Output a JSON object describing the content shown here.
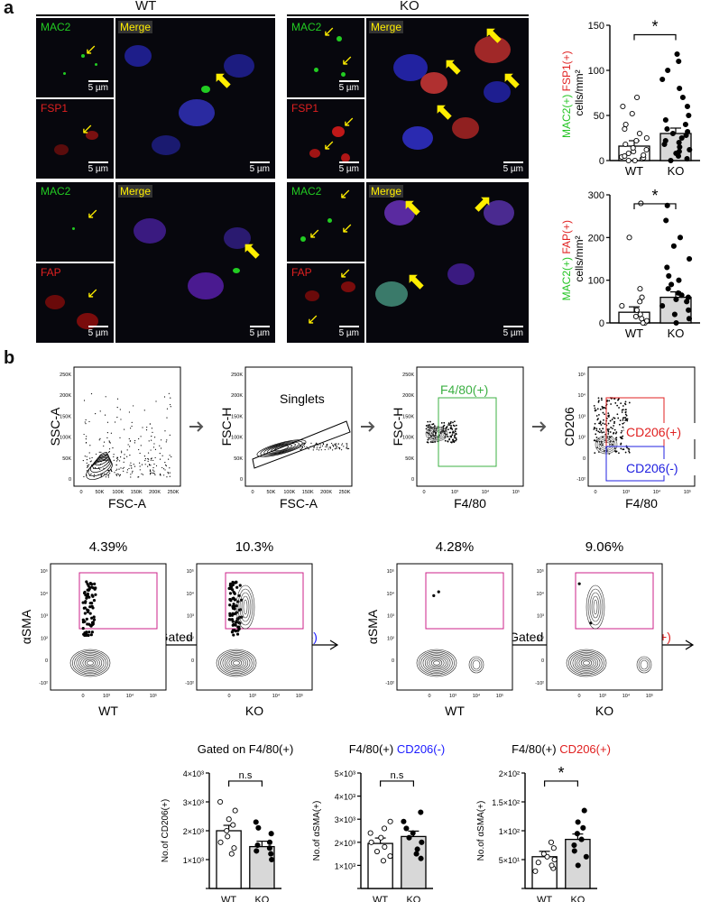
{
  "panel_a": {
    "letter": "a",
    "wt_title": "WT",
    "ko_title": "KO",
    "labels": {
      "mac2": "MAC2",
      "fsp1": "FSP1",
      "fap": "FAP",
      "merge": "Merge"
    },
    "scale_small": "5 µm",
    "scale_large": "5 µm",
    "colors": {
      "green": "#22c422",
      "red": "#e02020",
      "blue": "#1a1aff",
      "yellow": "#ffee00"
    },
    "chart_fsp1": {
      "ylabel_parts": [
        "MAC2(+)",
        "FSP1(+)",
        "cells/mm²"
      ],
      "yticks": [
        "0",
        "50",
        "100",
        "150"
      ],
      "categories": [
        "WT",
        "KO"
      ],
      "sig": "*"
    },
    "chart_fap": {
      "ylabel_parts": [
        "MAC2(+)",
        "FAP(+)",
        "cells/mm²"
      ],
      "yticks": [
        "0",
        "100",
        "200",
        "300"
      ],
      "categories": [
        "WT",
        "KO"
      ],
      "sig": "*"
    }
  },
  "panel_b": {
    "letter": "b",
    "gating": [
      {
        "ylabel": "SSC-A",
        "xlabel": "FSC-A",
        "yticks": [
          "0",
          "50K",
          "100K",
          "150K",
          "200K",
          "250K"
        ],
        "xticks": [
          "0",
          "50K",
          "100K",
          "150K",
          "200K",
          "250K"
        ]
      },
      {
        "ylabel": "FSC-H",
        "xlabel": "FSC-A",
        "gate": "Singlets",
        "yticks": [
          "0",
          "50K",
          "100K",
          "150K",
          "200K",
          "250K"
        ],
        "xticks": [
          "0",
          "50K",
          "100K",
          "150K",
          "200K",
          "250K"
        ]
      },
      {
        "ylabel": "FSC-H",
        "xlabel": "F4/80",
        "gate": "F4/80(+)",
        "yticks": [
          "0",
          "50K",
          "100K",
          "150K",
          "200K",
          "250K"
        ],
        "xticks": [
          "0",
          "10³",
          "10⁴",
          "10⁵"
        ]
      },
      {
        "ylabel": "CD206",
        "xlabel": "F4/80",
        "gate_pos": "CD206(+)",
        "gate_neg": "CD206(-)",
        "yticks": [
          "-10²",
          "0",
          "10²",
          "10³",
          "10⁴",
          "10⁵"
        ],
        "xticks": [
          "0",
          "10³",
          "10⁴",
          "10⁵"
        ]
      }
    ],
    "gated_left": {
      "prefix": "Gated on F4/80(+) ",
      "suffix": "CD206(-)",
      "axis": "F4/80"
    },
    "gated_right": {
      "prefix": "Gated on F4/80(+) ",
      "suffix": "CD206(+)",
      "axis": "F4/80"
    },
    "asma_label": "αSMA",
    "contour_yticks": [
      "-10²",
      "0",
      "10²",
      "10³",
      "10⁴",
      "10⁵"
    ],
    "contour_xticks": [
      "0",
      "10³",
      "10⁴",
      "10⁵"
    ],
    "contours": [
      {
        "pct": "4.39%",
        "name": "WT"
      },
      {
        "pct": "10.3%",
        "name": "KO"
      },
      {
        "pct": "4.28%",
        "name": "WT"
      },
      {
        "pct": "9.06%",
        "name": "KO"
      }
    ],
    "bars_titles": [
      {
        "prefix": "Gated on F4/80(+)",
        "suffix": ""
      },
      {
        "prefix": "F4/80(+) ",
        "suffix": "CD206(-)"
      },
      {
        "prefix": "F4/80(+) ",
        "suffix": "CD206(+)"
      }
    ]
  },
  "chart_data": [
    {
      "type": "bar",
      "title": "",
      "ylabel": "MAC2(+) FSP1(+) cells/mm²",
      "categories": [
        "WT",
        "KO"
      ],
      "values": [
        16,
        30
      ],
      "ylim": [
        0,
        150
      ],
      "significance": "*",
      "points": {
        "WT": [
          0,
          0,
          2,
          3,
          4,
          5,
          6,
          8,
          10,
          12,
          14,
          18,
          22,
          25,
          30,
          35,
          40,
          52,
          60,
          70
        ],
        "KO": [
          0,
          2,
          5,
          8,
          10,
          12,
          15,
          18,
          20,
          22,
          25,
          28,
          30,
          32,
          35,
          40,
          45,
          50,
          60,
          70,
          80,
          90,
          100,
          110,
          118
        ]
      }
    },
    {
      "type": "bar",
      "title": "",
      "ylabel": "MAC2(+) FAP(+) cells/mm²",
      "categories": [
        "WT",
        "KO"
      ],
      "values": [
        25,
        60
      ],
      "ylim": [
        0,
        300
      ],
      "significance": "*",
      "points": {
        "WT": [
          0,
          0,
          5,
          10,
          15,
          20,
          30,
          40,
          50,
          60,
          80,
          200,
          280
        ],
        "KO": [
          0,
          10,
          20,
          30,
          40,
          50,
          55,
          60,
          65,
          70,
          80,
          90,
          100,
          110,
          130,
          150,
          180,
          200,
          240,
          275
        ]
      }
    },
    {
      "type": "bar",
      "title": "Gated on F4/80(+)",
      "ylabel": "No.of CD206(+)",
      "categories": [
        "WT",
        "KO"
      ],
      "values": [
        2000,
        1450
      ],
      "ylim": [
        0,
        4000
      ],
      "significance": "n.s",
      "points": {
        "WT": [
          1200,
          1400,
          1600,
          1800,
          2000,
          2200,
          2400,
          2700,
          3000
        ],
        "KO": [
          1000,
          1200,
          1300,
          1400,
          1500,
          1600,
          1900,
          2100,
          2300
        ]
      }
    },
    {
      "type": "bar",
      "title": "F4/80(+) CD206(-)",
      "ylabel": "No.of αSMA(+)",
      "categories": [
        "WT",
        "KO"
      ],
      "values": [
        1950,
        2250
      ],
      "ylim": [
        0,
        5000
      ],
      "significance": "n.s",
      "points": {
        "WT": [
          1200,
          1400,
          1600,
          1800,
          2000,
          2200,
          2400,
          2600,
          2900
        ],
        "KO": [
          1300,
          1500,
          1700,
          2000,
          2200,
          2400,
          2600,
          2900,
          3300
        ]
      }
    },
    {
      "type": "bar",
      "title": "F4/80(+) CD206(+)",
      "ylabel": "No.of αSMA(+)",
      "categories": [
        "WT",
        "KO"
      ],
      "values": [
        55,
        85
      ],
      "ylim": [
        0,
        200
      ],
      "significance": "*",
      "points": {
        "WT": [
          30,
          35,
          40,
          45,
          50,
          55,
          60,
          70,
          80
        ],
        "KO": [
          40,
          55,
          65,
          75,
          85,
          95,
          105,
          115,
          135
        ]
      }
    }
  ]
}
